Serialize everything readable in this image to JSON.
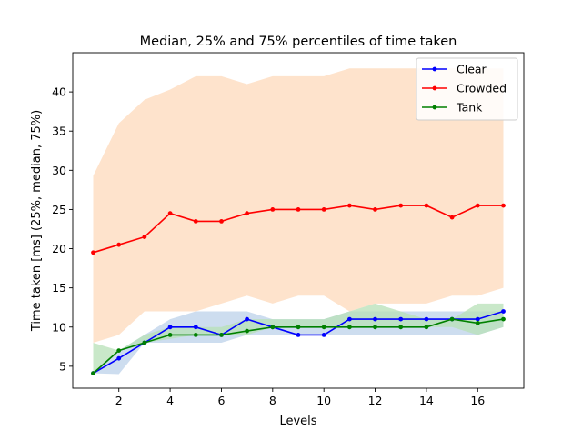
{
  "chart_data": {
    "type": "line",
    "title": "Median, 25% and 75% percentiles of time taken",
    "xlabel": "Levels",
    "ylabel": "Time taken [ms] (25%, median, 75%)",
    "xlim": [
      0.2,
      17.8
    ],
    "ylim": [
      2.2,
      45.0
    ],
    "xticks": [
      2,
      4,
      6,
      8,
      10,
      12,
      14,
      16
    ],
    "yticks": [
      5,
      10,
      15,
      20,
      25,
      30,
      35,
      40
    ],
    "grid": false,
    "legend_position": "top-right",
    "x": [
      1,
      2,
      3,
      4,
      5,
      6,
      7,
      8,
      9,
      10,
      11,
      12,
      13,
      14,
      15,
      16,
      17
    ],
    "series": [
      {
        "name": "Crowded",
        "color": "#ff0000",
        "band_color": "#fdd9bb",
        "median": [
          19.5,
          20.5,
          21.5,
          24.5,
          23.5,
          23.5,
          24.5,
          25,
          25,
          25,
          25.5,
          25,
          25.5,
          25.5,
          24,
          25.5,
          25.5
        ],
        "p25": [
          8,
          9,
          12,
          12,
          12,
          13,
          14,
          13,
          14,
          14,
          12,
          13,
          13,
          13,
          14,
          14,
          15
        ],
        "p75": [
          29.3,
          36,
          39,
          40.3,
          42,
          42,
          41,
          42,
          42,
          42,
          43,
          43,
          43,
          43,
          43,
          43,
          43
        ]
      },
      {
        "name": "Clear",
        "color": "#0000ff",
        "band_color": "#bcd2ea",
        "median": [
          4.1,
          6,
          8,
          10,
          10,
          9,
          11,
          10,
          9,
          9,
          11,
          11,
          11,
          11,
          11,
          11,
          12
        ],
        "p25": [
          4.1,
          4,
          8,
          8,
          8,
          8,
          9,
          9,
          9,
          9,
          9,
          9,
          9,
          9,
          9,
          9,
          10
        ],
        "p75": [
          4.1,
          7,
          9,
          11,
          12,
          12,
          12,
          11,
          11,
          11,
          12,
          12,
          12,
          12,
          12,
          12,
          12
        ]
      },
      {
        "name": "Tank",
        "color": "#008000",
        "band_color": "#b7e0b7",
        "median": [
          4.1,
          7,
          8,
          9,
          9,
          9,
          9.5,
          10,
          10,
          10,
          10,
          10,
          10,
          10,
          11,
          10.5,
          11
        ],
        "p25": [
          4.1,
          7,
          8,
          8.5,
          9,
          9,
          9,
          10,
          10,
          10,
          10,
          10,
          10,
          10,
          10,
          9,
          10
        ],
        "p75": [
          8,
          7,
          9,
          10,
          10,
          10,
          11,
          11,
          11,
          11,
          12,
          13,
          12,
          11,
          11,
          13,
          13
        ]
      }
    ],
    "legend_order": [
      "Clear",
      "Crowded",
      "Tank"
    ]
  }
}
